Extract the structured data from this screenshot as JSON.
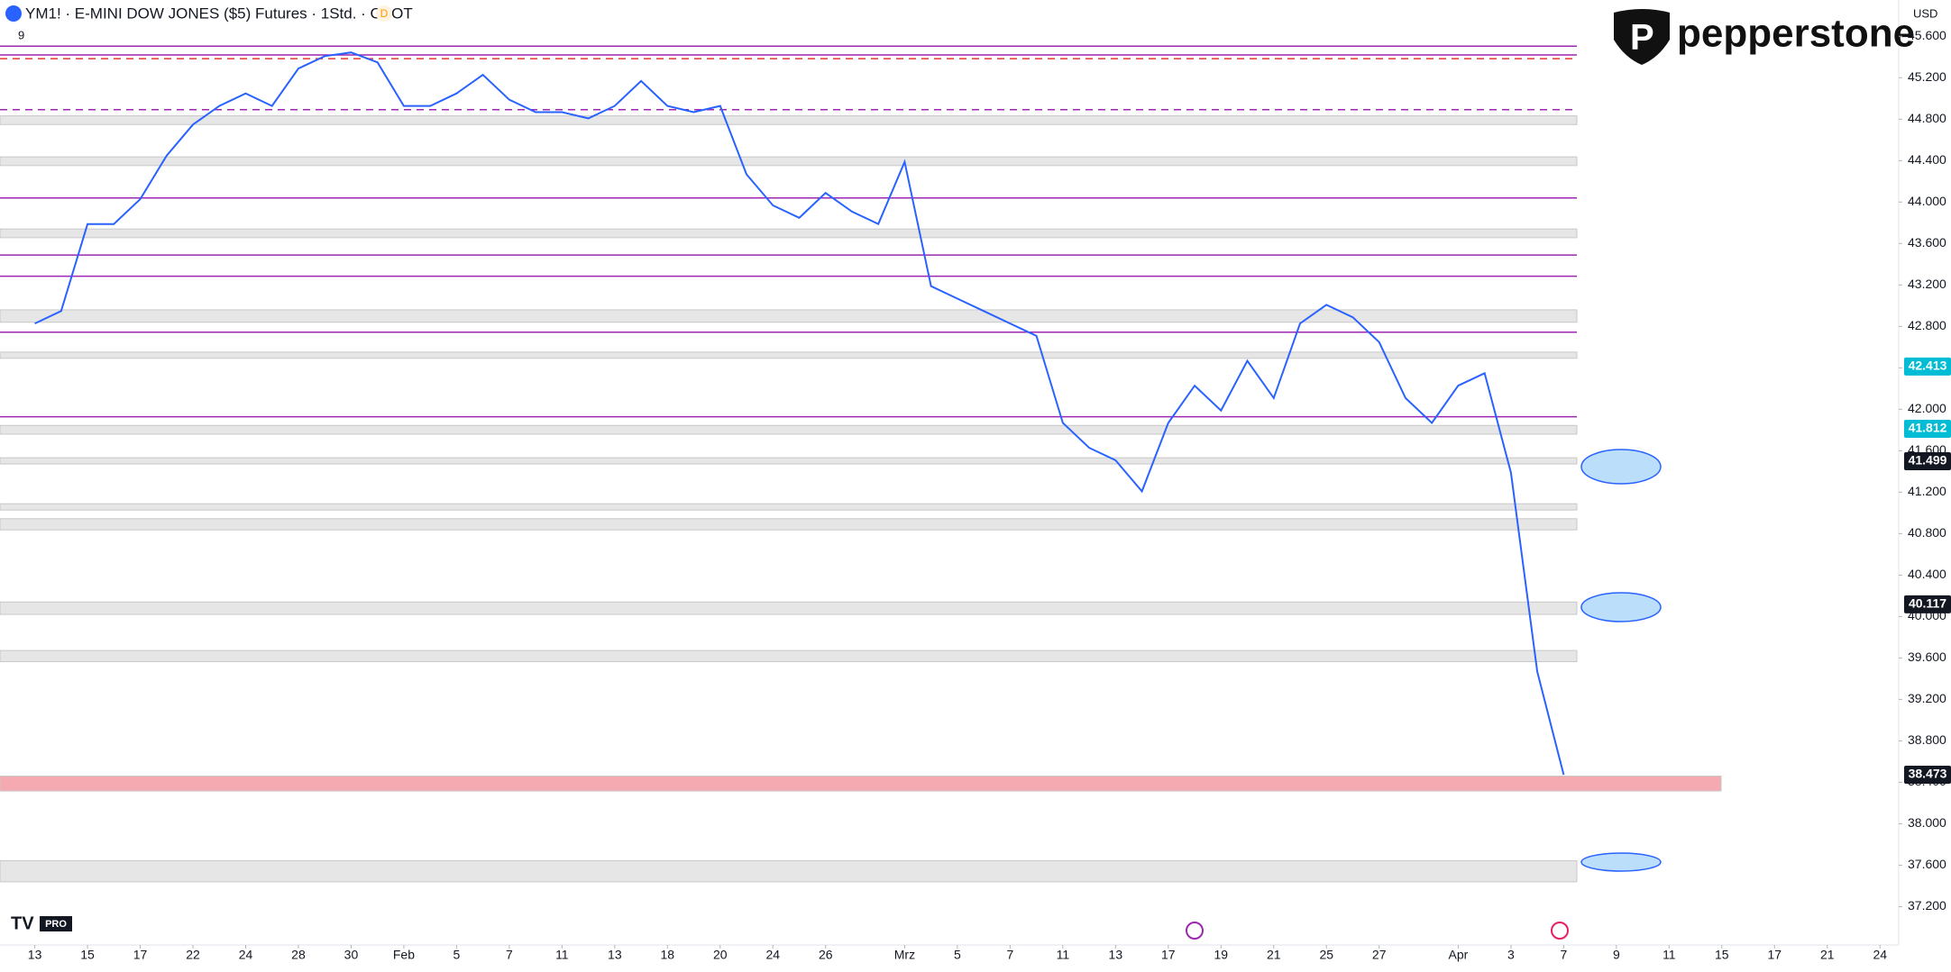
{
  "header": {
    "symbol_title": "YM1! · E-MINI DOW JONES ($5) Futures · 1Std. · CBOT",
    "badge": "D",
    "interval_count": "9",
    "currency": "USD",
    "brand": "pepperstone",
    "footer_logo": "PRO"
  },
  "chart_data": {
    "type": "line",
    "color": "#2962ff",
    "x": [
      0,
      1,
      2,
      3,
      4,
      5,
      6,
      7,
      8,
      9,
      10,
      11,
      12,
      13,
      14,
      15,
      16,
      17,
      18,
      19,
      20,
      21,
      22,
      23,
      24,
      25,
      26,
      27,
      28,
      29,
      30,
      31,
      32,
      33,
      34,
      35,
      36,
      37,
      38,
      39,
      40,
      41,
      42,
      43,
      44,
      45,
      46,
      47,
      48,
      49,
      50,
      51,
      52,
      53,
      54,
      55,
      56,
      57,
      58
    ],
    "values": [
      42828,
      42948,
      43788,
      43788,
      44028,
      44448,
      44748,
      44928,
      45048,
      44928,
      45288,
      45408,
      45444,
      45348,
      44928,
      44928,
      45048,
      45228,
      44988,
      44868,
      44868,
      44808,
      44928,
      45168,
      44928,
      44868,
      44928,
      44268,
      43968,
      43848,
      44088,
      43908,
      43788,
      44388,
      43188,
      43068,
      42948,
      42828,
      42708,
      41868,
      41628,
      41508,
      41208,
      41868,
      42228,
      41988,
      42468,
      42108,
      42828,
      43008,
      42888,
      42648,
      42108,
      41868,
      42228,
      42348,
      41388,
      39468,
      38473
    ],
    "xlim": [
      -1.32,
      70.71
    ],
    "xticks": [
      {
        "value": 0,
        "label": "13"
      },
      {
        "value": 2,
        "label": "15"
      },
      {
        "value": 4,
        "label": "17"
      },
      {
        "value": 6,
        "label": "22"
      },
      {
        "value": 8,
        "label": "24"
      },
      {
        "value": 10,
        "label": "28"
      },
      {
        "value": 12,
        "label": "30"
      },
      {
        "value": 14,
        "label": "Feb"
      },
      {
        "value": 16,
        "label": "5"
      },
      {
        "value": 18,
        "label": "7"
      },
      {
        "value": 20,
        "label": "11"
      },
      {
        "value": 22,
        "label": "13"
      },
      {
        "value": 24,
        "label": "18"
      },
      {
        "value": 26,
        "label": "20"
      },
      {
        "value": 28,
        "label": "24"
      },
      {
        "value": 30,
        "label": "26"
      },
      {
        "value": 33,
        "label": "Mrz"
      },
      {
        "value": 35,
        "label": "5"
      },
      {
        "value": 37,
        "label": "7"
      },
      {
        "value": 39,
        "label": "11"
      },
      {
        "value": 41,
        "label": "13"
      },
      {
        "value": 43,
        "label": "17"
      },
      {
        "value": 45,
        "label": "19"
      },
      {
        "value": 47,
        "label": "21"
      },
      {
        "value": 49,
        "label": "25"
      },
      {
        "value": 51,
        "label": "27"
      },
      {
        "value": 54,
        "label": "Apr"
      },
      {
        "value": 56,
        "label": "3"
      },
      {
        "value": 58,
        "label": "7"
      },
      {
        "value": 60,
        "label": "9"
      },
      {
        "value": 62,
        "label": "11"
      },
      {
        "value": 64,
        "label": "15"
      },
      {
        "value": 66,
        "label": "17"
      },
      {
        "value": 68,
        "label": "21"
      },
      {
        "value": 70,
        "label": "24"
      }
    ],
    "ylim": [
      36830,
      45950
    ],
    "yticks": [
      {
        "value": 37200,
        "label": "37.200"
      },
      {
        "value": 37600,
        "label": "37.600"
      },
      {
        "value": 38000,
        "label": "38.000"
      },
      {
        "value": 38400,
        "label": "38.400"
      },
      {
        "value": 38800,
        "label": "38.800"
      },
      {
        "value": 39200,
        "label": "39.200"
      },
      {
        "value": 39600,
        "label": "39.600"
      },
      {
        "value": 40000,
        "label": "40.000"
      },
      {
        "value": 40400,
        "label": "40.400"
      },
      {
        "value": 40800,
        "label": "40.800"
      },
      {
        "value": 41200,
        "label": "41.200"
      },
      {
        "value": 41600,
        "label": "41.600"
      },
      {
        "value": 42000,
        "label": "42.000"
      },
      {
        "value": 42400,
        "label": "42.400"
      },
      {
        "value": 42800,
        "label": "42.800"
      },
      {
        "value": 43200,
        "label": "43.200"
      },
      {
        "value": 43600,
        "label": "43.600"
      },
      {
        "value": 44000,
        "label": "44.000"
      },
      {
        "value": 44400,
        "label": "44.400"
      },
      {
        "value": 44800,
        "label": "44.800"
      },
      {
        "value": 45200,
        "label": "45.200"
      },
      {
        "value": 45600,
        "label": "45.600"
      }
    ],
    "zones": [
      {
        "low": 44748,
        "high": 44832,
        "color": "#e6e6e6"
      },
      {
        "low": 44352,
        "high": 44436,
        "color": "#e6e6e6"
      },
      {
        "low": 43656,
        "high": 43740,
        "color": "#e6e6e6"
      },
      {
        "low": 42840,
        "high": 42960,
        "color": "#e6e6e6"
      },
      {
        "low": 42492,
        "high": 42552,
        "color": "#e6e6e6"
      },
      {
        "low": 41760,
        "high": 41844,
        "color": "#e6e6e6"
      },
      {
        "low": 41472,
        "high": 41532,
        "color": "#e6e6e6"
      },
      {
        "low": 41028,
        "high": 41088,
        "color": "#e6e6e6"
      },
      {
        "low": 40836,
        "high": 40944,
        "color": "#e6e6e6"
      },
      {
        "low": 40020,
        "high": 40140,
        "color": "#e6e6e6"
      },
      {
        "low": 39564,
        "high": 39672,
        "color": "#e6e6e6"
      },
      {
        "low": 38316,
        "high": 38460,
        "color": "#f4aab0"
      },
      {
        "low": 37440,
        "high": 37644,
        "color": "#e6e6e6"
      }
    ],
    "levels": [
      {
        "value": 45504,
        "color": "#9c27b0",
        "dashed": false
      },
      {
        "value": 45420,
        "color": "#9c27b0",
        "dashed": false
      },
      {
        "value": 45384,
        "color": "#e53935",
        "dashed": true
      },
      {
        "value": 44892,
        "color": "#9c27b0",
        "dashed": true
      },
      {
        "value": 44040,
        "color": "#9c27b0",
        "dashed": false
      },
      {
        "value": 43488,
        "color": "#9c27b0",
        "dashed": false
      },
      {
        "value": 43284,
        "color": "#9c27b0",
        "dashed": false
      },
      {
        "value": 42744,
        "color": "#9c27b0",
        "dashed": false
      },
      {
        "value": 41928,
        "color": "#9c27b0",
        "dashed": false
      }
    ],
    "price_labels": [
      {
        "value": 42413,
        "label": "42.413",
        "color": "#00bcd4"
      },
      {
        "value": 41812,
        "label": "41.812",
        "color": "#00bcd4"
      },
      {
        "value": 41499,
        "label": "41.499",
        "color": "#131722"
      },
      {
        "value": 40117,
        "label": "40.117",
        "color": "#131722"
      },
      {
        "value": 38473,
        "label": "38.473",
        "color": "#131722"
      }
    ]
  }
}
